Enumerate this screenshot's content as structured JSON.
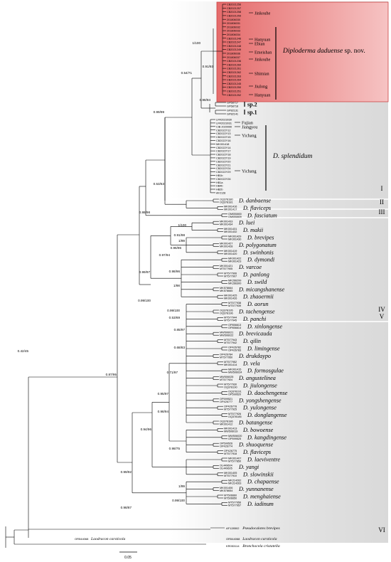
{
  "colors": {
    "background": "#ffffff",
    "clade_band": "#e3e3e3",
    "band_divider": "#ffffff",
    "new_species_box": "#f19a9a",
    "tree_line": "#000000"
  },
  "new_species": {
    "name": "Diploderma daduense",
    "suffix": "sp. nov.",
    "specimens": [
      "CB2021256",
      "CB2021257",
      "CB2021258",
      "CB2021259",
      "201806030",
      "201806031",
      "201806032",
      "201806033",
      "201806034",
      "CB2021246",
      "CB2021247",
      "CB2021248",
      "CB2021249",
      "201806036",
      "201806037",
      "CB2021236",
      "CB2021260",
      "CB2021261",
      "CB2021262",
      "CB2021263",
      "CB2021264",
      "CB2021245",
      "CB2021250",
      "CB2021251",
      "CB2021252"
    ],
    "localities": [
      "Jinkouhe",
      "Hanyuan",
      "Ebian",
      "Emeishan",
      "Jinkouhe",
      "Shimian",
      "Jiulong",
      "Hanyuan"
    ]
  },
  "sp_clades": [
    {
      "label": "sp.2",
      "specimens": [
        "GP68717",
        "GP68718"
      ]
    },
    {
      "label": "sp.1",
      "specimens": [
        "GP82131",
        "GP82141"
      ]
    }
  ],
  "splendidum": {
    "species": "D. splendidum",
    "localities": [
      "Fujian",
      "Jiangyou",
      "Yichang",
      "Yichang"
    ],
    "specimens": [
      "LFR2023030",
      "LFR2023031",
      "CIB 2020090",
      "CB2022Y12",
      "CB2022Y13",
      "CB2022Y15",
      "CB2022Y16",
      "MK001418",
      "CB2022Y14",
      "CB2022Y17",
      "CB2022Y18",
      "CB2022Y19",
      "CB2022Y20",
      "CB2022Y21",
      "CB2022Y24",
      "CB2022Y29",
      "HB1b",
      "CB2022Y26",
      "HB1a",
      "HB4b",
      "HB2b",
      "AF2128"
    ]
  },
  "clade_numbers": [
    "I",
    "II",
    "III",
    "IV",
    "V",
    "VI"
  ],
  "species": [
    {
      "name": "D. danbaense",
      "acc": [
        "OQ378180",
        "OQ378181"
      ]
    },
    {
      "name": "D. flaviceps",
      "acc": [
        "MK001416",
        "MK001417"
      ]
    },
    {
      "name": "D. fasciatum",
      "acc": [
        "OM055800",
        "OM055809"
      ]
    },
    {
      "name": "D. luei",
      "acc": [
        "MK001433",
        "MK001434"
      ]
    },
    {
      "name": "D. makii",
      "acc": [
        "MK001431",
        "MK001432"
      ]
    },
    {
      "name": "D. brevipes",
      "acc": [
        "MK001429",
        "MK001430"
      ]
    },
    {
      "name": "D. polygonatum",
      "acc": [
        "MK001427",
        "MK001428"
      ]
    },
    {
      "name": "D. swinhonis",
      "acc": [
        "MK001419",
        "MK001420"
      ]
    },
    {
      "name": "D. dymondi",
      "acc": [
        "MK001422",
        "MK001423"
      ]
    },
    {
      "name": "D. varcoe",
      "acc": [
        "MK001421",
        "MT577905"
      ]
    },
    {
      "name": "D. panlong",
      "acc": [
        "MT577906",
        "MT577907"
      ]
    },
    {
      "name": "D. swild",
      "acc": [
        "MK266299",
        "MK266300"
      ]
    },
    {
      "name": "D. micangshanense",
      "acc": [
        "MK578664",
        "MK578665"
      ]
    },
    {
      "name": "D. zhaoermii",
      "acc": [
        "MK001425",
        "MK001426"
      ]
    },
    {
      "name": "D. aorun",
      "acc": [
        "MT577938",
        "MT577939"
      ]
    },
    {
      "name": "D. tachengense",
      "acc": [
        "OQ378195",
        "OQ378196"
      ]
    },
    {
      "name": "D. panchi",
      "acc": [
        "MT577944",
        "MT577945"
      ]
    },
    {
      "name": "D. xinlongense",
      "acc": [
        "OP856613",
        "OP856614"
      ]
    },
    {
      "name": "D. brevicauda",
      "acc": [
        "MW506021",
        "MW506022"
      ]
    },
    {
      "name": "D. qilin",
      "acc": [
        "MT577943",
        "MT577942"
      ]
    },
    {
      "name": "D. limingense",
      "acc": [
        "OP426782",
        "OP426783"
      ]
    },
    {
      "name": "D. drukdaypo",
      "acc": [
        "OP426784",
        "MT577950"
      ]
    },
    {
      "name": "D. vela",
      "acc": [
        "MT577952",
        "MK001414"
      ]
    },
    {
      "name": "D. formosgulae",
      "acc": [
        "MK001415",
        "MW506024"
      ]
    },
    {
      "name": "D. angustelinea",
      "acc": [
        "MW506025",
        "MT577924"
      ]
    },
    {
      "name": "D. jiulongense",
      "acc": [
        "MT577930",
        "OQ378190"
      ]
    },
    {
      "name": "D. daochengense",
      "acc": [
        "OQ378191",
        "OP599520"
      ]
    },
    {
      "name": "D. yongshengense",
      "acc": [
        "OP599521",
        "OP426777"
      ]
    },
    {
      "name": "D. yulongense",
      "acc": [
        "OP426778",
        "MT577925"
      ]
    },
    {
      "name": "D. donglangense",
      "acc": [
        "MT577926",
        "OQ378185"
      ]
    },
    {
      "name": "D. batangense",
      "acc": [
        "OQ378186",
        "MK001412"
      ]
    },
    {
      "name": "D. bowoense",
      "acc": [
        "MK001413",
        "MW506019"
      ]
    },
    {
      "name": "D. kangdingense",
      "acc": [
        "MW506020",
        "OP599525"
      ]
    },
    {
      "name": "D. shuoquense",
      "acc": [
        "OP599526",
        "OP426774"
      ]
    },
    {
      "name": "D. flaviceps",
      "acc": [
        "OP426775",
        "MT577918"
      ]
    },
    {
      "name": "D. laeviventre",
      "acc": [
        "MK001407",
        "MT577850"
      ]
    },
    {
      "name": "D. yangi",
      "acc": [
        "OL449604",
        "OL449605"
      ]
    },
    {
      "name": "D. slowinskii",
      "acc": [
        "MK001405",
        "MT577910"
      ]
    },
    {
      "name": "D. chapaense",
      "acc": [
        "MK214262",
        "MK214263"
      ]
    },
    {
      "name": "D. yunnanense",
      "acc": [
        "MK001406",
        "MK578654"
      ]
    },
    {
      "name": "D. menghaiense",
      "acc": [
        "MT506660",
        "MT506650"
      ]
    },
    {
      "name": "D. iadinum",
      "acc": [
        "MT577956",
        "MT577957"
      ]
    }
  ],
  "outgroups": [
    {
      "acc": "AF128502",
      "name": "Pseudocalotes brevipes"
    },
    {
      "acc": "OR544068",
      "name": "Laodracon carsticola"
    },
    {
      "acc": "KR053114",
      "name": "Bronchocela cristatella"
    }
  ],
  "node_supports": [
    "1/100",
    "0.91/93",
    "0.54/71",
    "0.98/94",
    "0.99/99",
    "0.53/63",
    "0.86/98",
    "1/100",
    "0.91/98",
    "1/99",
    "0.96/96",
    "0.97/94",
    "0.99/97",
    "0.98/96",
    "1/98",
    "0.99/100",
    "0.99/100",
    "0.53/69",
    "0.85/97",
    "0.68/83",
    "0.71/97",
    "0.95/97",
    "0.98/94",
    "0.94/96",
    "0.98/75",
    "0.99/92",
    "0.87/95",
    "0.42/45",
    "0.98/87",
    "1/99",
    "0.99/100"
  ],
  "scale_bar_label": "0.05"
}
